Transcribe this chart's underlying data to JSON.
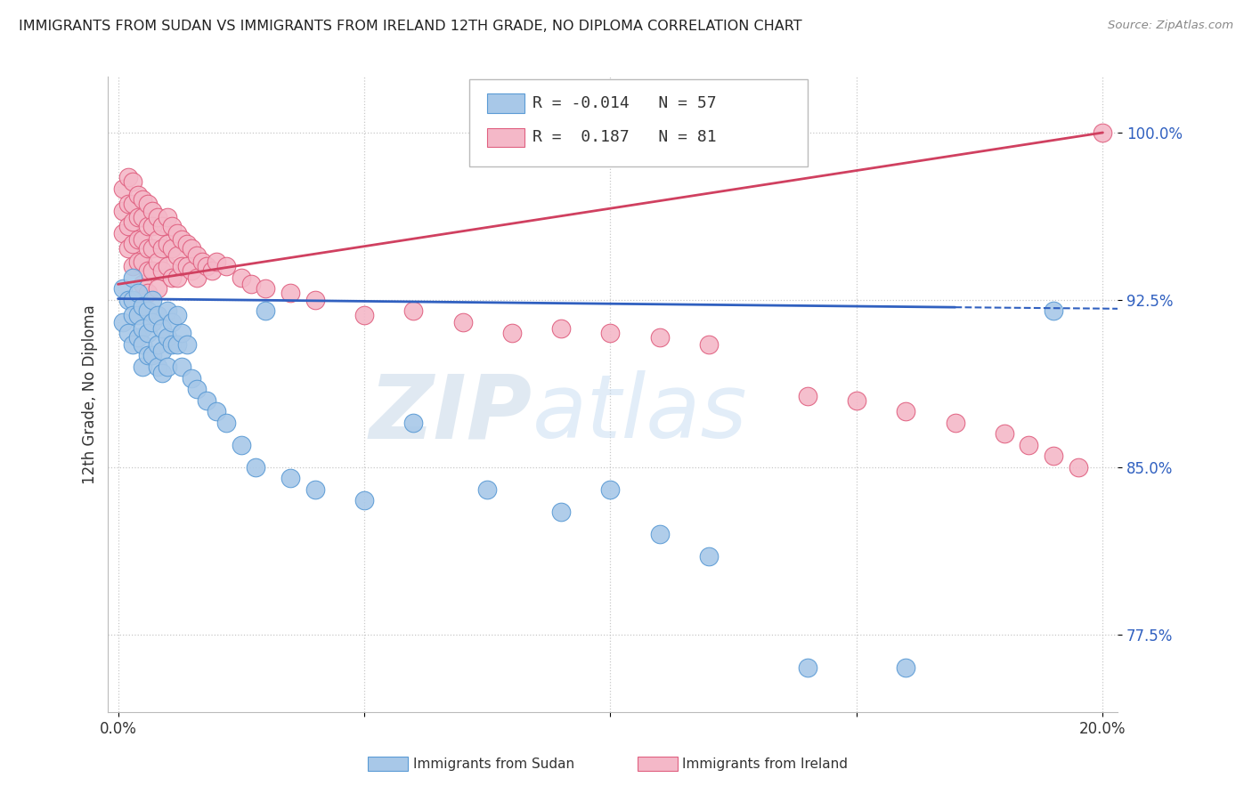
{
  "title": "IMMIGRANTS FROM SUDAN VS IMMIGRANTS FROM IRELAND 12TH GRADE, NO DIPLOMA CORRELATION CHART",
  "source": "Source: ZipAtlas.com",
  "ylabel": "12th Grade, No Diploma",
  "yticks": [
    0.775,
    0.85,
    0.925,
    1.0
  ],
  "ytick_labels": [
    "77.5%",
    "85.0%",
    "92.5%",
    "100.0%"
  ],
  "xmin": 0.0,
  "xmax": 0.2,
  "ymin": 0.74,
  "ymax": 1.025,
  "sudan_color": "#a8c8e8",
  "sudan_edge_color": "#5b9bd5",
  "ireland_color": "#f4b8c8",
  "ireland_edge_color": "#e06080",
  "sudan_line_color": "#3060c0",
  "ireland_line_color": "#d04060",
  "sudan_R": -0.014,
  "sudan_N": 57,
  "ireland_R": 0.187,
  "ireland_N": 81,
  "legend_label_sudan": "Immigrants from Sudan",
  "legend_label_ireland": "Immigrants from Ireland",
  "watermark_zip": "ZIP",
  "watermark_atlas": "atlas",
  "sudan_line_y0": 0.9255,
  "sudan_line_y1": 0.921,
  "ireland_line_y0": 0.932,
  "ireland_line_y1": 1.0,
  "sudan_scatter_x": [
    0.001,
    0.001,
    0.002,
    0.002,
    0.003,
    0.003,
    0.003,
    0.003,
    0.004,
    0.004,
    0.004,
    0.005,
    0.005,
    0.005,
    0.005,
    0.006,
    0.006,
    0.006,
    0.007,
    0.007,
    0.007,
    0.008,
    0.008,
    0.008,
    0.009,
    0.009,
    0.009,
    0.01,
    0.01,
    0.01,
    0.011,
    0.011,
    0.012,
    0.012,
    0.013,
    0.013,
    0.014,
    0.015,
    0.016,
    0.018,
    0.02,
    0.022,
    0.025,
    0.028,
    0.03,
    0.035,
    0.04,
    0.05,
    0.06,
    0.075,
    0.09,
    0.1,
    0.11,
    0.12,
    0.14,
    0.16,
    0.19
  ],
  "sudan_scatter_y": [
    0.93,
    0.915,
    0.925,
    0.91,
    0.935,
    0.925,
    0.918,
    0.905,
    0.928,
    0.918,
    0.908,
    0.922,
    0.912,
    0.905,
    0.895,
    0.92,
    0.91,
    0.9,
    0.925,
    0.915,
    0.9,
    0.918,
    0.905,
    0.895,
    0.912,
    0.902,
    0.892,
    0.92,
    0.908,
    0.895,
    0.915,
    0.905,
    0.918,
    0.905,
    0.91,
    0.895,
    0.905,
    0.89,
    0.885,
    0.88,
    0.875,
    0.87,
    0.86,
    0.85,
    0.92,
    0.845,
    0.84,
    0.835,
    0.87,
    0.84,
    0.83,
    0.84,
    0.82,
    0.81,
    0.76,
    0.76,
    0.92
  ],
  "ireland_scatter_x": [
    0.001,
    0.001,
    0.001,
    0.002,
    0.002,
    0.002,
    0.002,
    0.003,
    0.003,
    0.003,
    0.003,
    0.003,
    0.004,
    0.004,
    0.004,
    0.004,
    0.005,
    0.005,
    0.005,
    0.005,
    0.005,
    0.006,
    0.006,
    0.006,
    0.006,
    0.006,
    0.007,
    0.007,
    0.007,
    0.007,
    0.008,
    0.008,
    0.008,
    0.008,
    0.009,
    0.009,
    0.009,
    0.01,
    0.01,
    0.01,
    0.011,
    0.011,
    0.011,
    0.012,
    0.012,
    0.012,
    0.013,
    0.013,
    0.014,
    0.014,
    0.015,
    0.015,
    0.016,
    0.016,
    0.017,
    0.018,
    0.019,
    0.02,
    0.022,
    0.025,
    0.027,
    0.03,
    0.035,
    0.04,
    0.05,
    0.06,
    0.07,
    0.08,
    0.09,
    0.1,
    0.11,
    0.12,
    0.14,
    0.15,
    0.16,
    0.17,
    0.18,
    0.185,
    0.19,
    0.195,
    0.2
  ],
  "ireland_scatter_y": [
    0.975,
    0.965,
    0.955,
    0.98,
    0.968,
    0.958,
    0.948,
    0.978,
    0.968,
    0.96,
    0.95,
    0.94,
    0.972,
    0.962,
    0.952,
    0.942,
    0.97,
    0.962,
    0.952,
    0.942,
    0.932,
    0.968,
    0.958,
    0.948,
    0.938,
    0.928,
    0.965,
    0.958,
    0.948,
    0.938,
    0.962,
    0.952,
    0.942,
    0.93,
    0.958,
    0.948,
    0.938,
    0.962,
    0.95,
    0.94,
    0.958,
    0.948,
    0.935,
    0.955,
    0.945,
    0.935,
    0.952,
    0.94,
    0.95,
    0.94,
    0.948,
    0.938,
    0.945,
    0.935,
    0.942,
    0.94,
    0.938,
    0.942,
    0.94,
    0.935,
    0.932,
    0.93,
    0.928,
    0.925,
    0.918,
    0.92,
    0.915,
    0.91,
    0.912,
    0.91,
    0.908,
    0.905,
    0.882,
    0.88,
    0.875,
    0.87,
    0.865,
    0.86,
    0.855,
    0.85,
    1.0
  ]
}
